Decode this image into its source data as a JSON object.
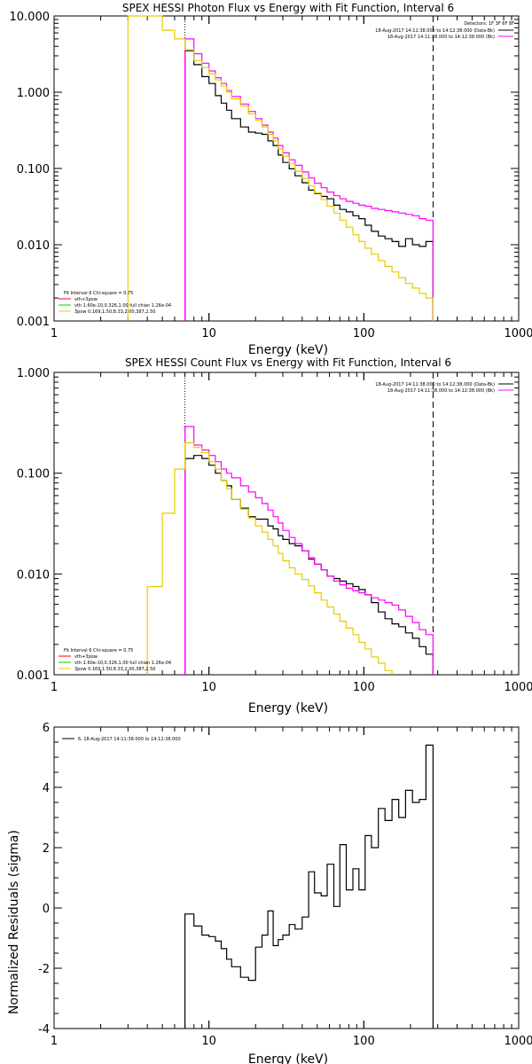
{
  "colors": {
    "data": "#000000",
    "fit_total": "#ff00ff",
    "comp_thermal": "#00cc00",
    "comp_powerlaw": "#e6cc00",
    "bk": "#ff0000",
    "energy_bound": "#8a2be2"
  },
  "chart_data": [
    {
      "type": "line",
      "title": "SPEX HESSI Photon Flux vs Energy with Fit Function, Interval 6",
      "xlabel": "Energy (keV)",
      "ylabel": "",
      "xscale": "log",
      "yscale": "log",
      "xlim": [
        1,
        1000
      ],
      "ylim": [
        0.001,
        10
      ],
      "xticks": [
        1,
        10,
        100,
        1000
      ],
      "xtick_labels": [
        "1",
        "10",
        "100",
        "1000"
      ],
      "yticks": [
        0.001,
        0.01,
        0.1,
        1,
        10
      ],
      "ytick_labels": [
        "0.001",
        "0.010",
        "0.100",
        "1.000",
        "10.000"
      ],
      "info_lines": [
        "Detectors: 1F 3F 6F 8F",
        "18-Aug-2017 14:11:38.000 to 14:12:38.000 (Data-Bk)",
        "18-Aug-2017 14:11:38.000 to 14:12:38.000 (Bk)"
      ],
      "legend_lines": [
        "Fit Interval 6   Chi-square = 0.75",
        "vth+3pow",
        "vth 1.60e-10,0.326,1.00  full chian 1.26e-04",
        "3pow 0.169,1.50,8.33,2.00,387,2.50"
      ],
      "vlines": [
        7,
        280
      ],
      "edges": [
        3,
        4,
        5,
        6,
        7,
        8,
        9,
        10,
        11,
        12,
        13,
        14,
        16,
        18,
        20,
        22,
        24,
        26,
        28,
        30,
        33,
        36,
        40,
        44,
        48,
        53,
        58,
        64,
        70,
        77,
        85,
        93,
        102,
        112,
        124,
        137,
        152,
        168,
        186,
        206,
        228,
        252,
        280
      ],
      "series": [
        {
          "key": "data",
          "values": [
            null,
            null,
            null,
            null,
            3.5,
            2.3,
            1.6,
            1.3,
            0.9,
            0.72,
            0.58,
            0.45,
            0.35,
            0.3,
            0.29,
            0.28,
            0.23,
            0.2,
            0.15,
            0.12,
            0.099,
            0.08,
            0.065,
            0.052,
            0.047,
            0.043,
            0.04,
            0.033,
            0.029,
            0.027,
            0.024,
            0.022,
            0.018,
            0.015,
            0.013,
            0.012,
            0.011,
            0.0095,
            0.012,
            0.01,
            0.0095,
            0.011
          ]
        },
        {
          "key": "fit_total",
          "values": [
            null,
            null,
            null,
            null,
            5.0,
            3.2,
            2.4,
            1.9,
            1.55,
            1.3,
            1.05,
            0.88,
            0.7,
            0.56,
            0.45,
            0.37,
            0.3,
            0.25,
            0.2,
            0.16,
            0.13,
            0.11,
            0.09,
            0.075,
            0.064,
            0.056,
            0.049,
            0.044,
            0.04,
            0.037,
            0.035,
            0.033,
            0.032,
            0.03,
            0.029,
            0.028,
            0.027,
            0.026,
            0.025,
            0.024,
            0.022,
            0.021
          ]
        },
        {
          "key": "comp_powerlaw",
          "values": [
            10,
            10,
            6.5,
            5.0,
            3.6,
            2.6,
            2.1,
            1.75,
            1.45,
            1.2,
            1.0,
            0.82,
            0.66,
            0.52,
            0.43,
            0.35,
            0.28,
            0.23,
            0.18,
            0.145,
            0.115,
            0.092,
            0.074,
            0.059,
            0.048,
            0.039,
            0.032,
            0.026,
            0.021,
            0.017,
            0.0135,
            0.011,
            0.009,
            0.0075,
            0.0062,
            0.0052,
            0.0044,
            0.0037,
            0.0031,
            0.0027,
            0.0023,
            0.002
          ]
        }
      ]
    },
    {
      "type": "line",
      "title": "SPEX HESSI Count Flux vs Energy with Fit Function, Interval 6",
      "xlabel": "Energy (keV)",
      "ylabel": "",
      "xscale": "log",
      "yscale": "log",
      "xlim": [
        1,
        1000
      ],
      "ylim": [
        0.001,
        1
      ],
      "xticks": [
        1,
        10,
        100,
        1000
      ],
      "xtick_labels": [
        "1",
        "10",
        "100",
        "1000"
      ],
      "yticks": [
        0.001,
        0.01,
        0.1,
        1
      ],
      "ytick_labels": [
        "0.001",
        "0.010",
        "0.100",
        "1.000"
      ],
      "info_lines": [
        "18-Aug-2017 14:11:38.000 to 14:12:38.000 (Data-Bk)",
        "18-Aug-2017 14:11:38.000 to 14:12:38.000 (Bk)"
      ],
      "legend_lines": [
        "Fit Interval 6   Chi-square = 0.75",
        "vth+3pow",
        "vth 1.60e-10,0.326,1.00  full chian 1.26e-04",
        "3pow 0.169,1.50,8.33,2.00,387,2.50"
      ],
      "vlines": [
        7,
        280
      ],
      "edges": [
        3,
        4,
        5,
        6,
        7,
        8,
        9,
        10,
        11,
        12,
        13,
        14,
        16,
        18,
        20,
        22,
        24,
        26,
        28,
        30,
        33,
        36,
        40,
        44,
        48,
        53,
        58,
        64,
        70,
        77,
        85,
        93,
        102,
        112,
        124,
        137,
        152,
        168,
        186,
        206,
        228,
        252,
        280
      ],
      "series": [
        {
          "key": "data",
          "values": [
            null,
            null,
            null,
            null,
            0.14,
            0.15,
            0.14,
            0.12,
            0.1,
            0.085,
            0.075,
            0.055,
            0.045,
            0.037,
            0.035,
            0.035,
            0.03,
            0.028,
            0.024,
            0.022,
            0.02,
            0.019,
            0.017,
            0.014,
            0.0125,
            0.011,
            0.0095,
            0.009,
            0.0085,
            0.008,
            0.0075,
            0.007,
            0.0062,
            0.0052,
            0.0042,
            0.0036,
            0.0032,
            0.003,
            0.0026,
            0.0023,
            0.0019,
            0.0016
          ]
        },
        {
          "key": "fit_total",
          "values": [
            null,
            null,
            null,
            null,
            0.29,
            0.19,
            0.17,
            0.15,
            0.13,
            0.11,
            0.1,
            0.09,
            0.075,
            0.065,
            0.057,
            0.05,
            0.043,
            0.037,
            0.032,
            0.027,
            0.023,
            0.02,
            0.017,
            0.0145,
            0.0125,
            0.011,
            0.0095,
            0.0085,
            0.0078,
            0.0072,
            0.0068,
            0.0065,
            0.0062,
            0.0058,
            0.0055,
            0.0052,
            0.0049,
            0.0044,
            0.0038,
            0.0033,
            0.0028,
            0.0025
          ]
        },
        {
          "key": "comp_powerlaw",
          "values": [
            null,
            0.0075,
            0.04,
            0.11,
            0.2,
            0.18,
            0.16,
            0.13,
            0.11,
            0.085,
            0.07,
            0.055,
            0.044,
            0.036,
            0.03,
            0.026,
            0.022,
            0.019,
            0.016,
            0.0135,
            0.0115,
            0.01,
            0.0088,
            0.0076,
            0.0065,
            0.0055,
            0.0047,
            0.004,
            0.0034,
            0.0029,
            0.0025,
            0.0021,
            0.0018,
            0.0015,
            0.0013,
            0.0011,
            null,
            null,
            null,
            null,
            null,
            null
          ]
        }
      ]
    },
    {
      "type": "line",
      "title": "",
      "xlabel": "Energy (keV)",
      "ylabel": "Normalized Residuals (sigma)",
      "xscale": "log",
      "yscale": "linear",
      "xlim": [
        1,
        1000
      ],
      "ylim": [
        -4,
        6
      ],
      "xticks": [
        1,
        10,
        100,
        1000
      ],
      "xtick_labels": [
        "1",
        "10",
        "100",
        "1000"
      ],
      "yticks": [
        -4,
        -2,
        0,
        2,
        4,
        6
      ],
      "ytick_labels": [
        "-4",
        "-2",
        "0",
        "2",
        "4",
        "6"
      ],
      "info_lines": [
        "6. 18-Aug-2017 14:11:38.000 to 14:12:38.000"
      ],
      "legend_lines": [],
      "vlines": [],
      "edges": [
        7,
        8,
        9,
        10,
        11,
        12,
        13,
        14,
        16,
        18,
        20,
        22,
        24,
        26,
        28,
        30,
        33,
        36,
        40,
        44,
        48,
        53,
        58,
        64,
        70,
        77,
        85,
        93,
        102,
        112,
        124,
        137,
        152,
        168,
        186,
        206,
        228,
        252,
        280
      ],
      "series": [
        {
          "key": "data",
          "values": [
            -0.2,
            -0.6,
            -0.9,
            -0.95,
            -1.1,
            -1.35,
            -1.7,
            -1.95,
            -2.3,
            -2.4,
            -1.3,
            -0.9,
            -0.1,
            -1.25,
            -1.05,
            -0.9,
            -0.55,
            -0.7,
            -0.3,
            1.2,
            0.5,
            0.4,
            1.45,
            0.05,
            2.1,
            0.6,
            1.3,
            0.6,
            2.4,
            2.0,
            3.3,
            2.9,
            3.6,
            3.0,
            3.9,
            3.5,
            3.6,
            5.4
          ]
        }
      ]
    }
  ]
}
